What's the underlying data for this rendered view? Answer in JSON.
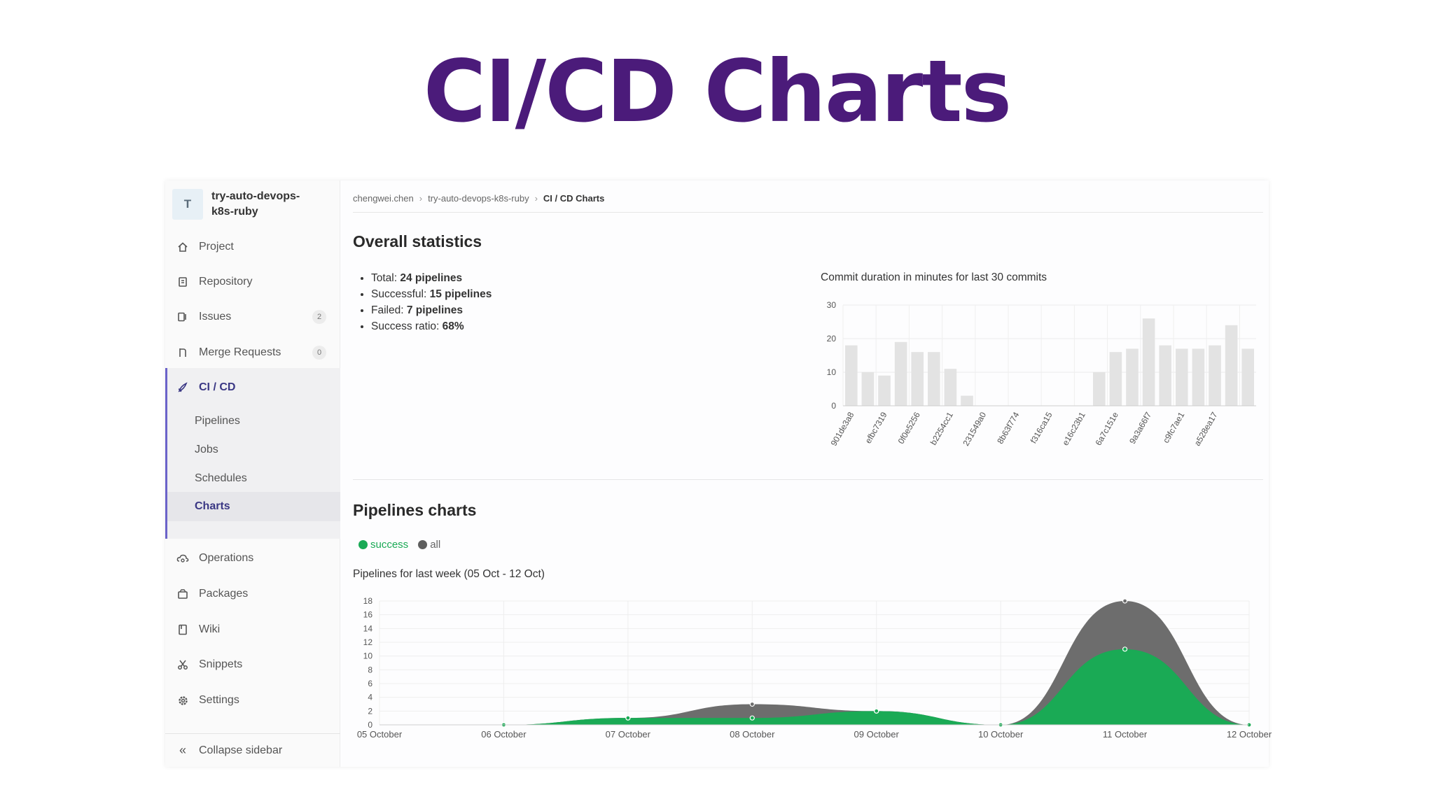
{
  "slide_title": "CI/CD Charts",
  "sidebar": {
    "project_initial": "T",
    "project_name": "try-auto-devops-k8s-ruby",
    "items": [
      {
        "label": "Project",
        "icon": "home-icon"
      },
      {
        "label": "Repository",
        "icon": "book-icon"
      },
      {
        "label": "Issues",
        "icon": "issues-icon",
        "badge": "2"
      },
      {
        "label": "Merge Requests",
        "icon": "merge-request-icon",
        "badge": "0"
      },
      {
        "label": "CI / CD",
        "icon": "rocket-icon"
      },
      {
        "label": "Operations",
        "icon": "cloud-gear-icon"
      },
      {
        "label": "Packages",
        "icon": "package-icon"
      },
      {
        "label": "Wiki",
        "icon": "wiki-icon"
      },
      {
        "label": "Snippets",
        "icon": "scissors-icon"
      },
      {
        "label": "Settings",
        "icon": "gear-icon"
      }
    ],
    "cicd_sub": [
      "Pipelines",
      "Jobs",
      "Schedules",
      "Charts"
    ],
    "collapse_label": "Collapse sidebar"
  },
  "breadcrumb": [
    "chengwei.chen",
    "try-auto-devops-k8s-ruby",
    "CI / CD Charts"
  ],
  "overall": {
    "heading": "Overall statistics",
    "stats": [
      {
        "label": "Total:",
        "value": "24 pipelines"
      },
      {
        "label": "Successful:",
        "value": "15 pipelines"
      },
      {
        "label": "Failed:",
        "value": "7 pipelines"
      },
      {
        "label": "Success ratio:",
        "value": "68%"
      }
    ]
  },
  "pipelines": {
    "heading": "Pipelines charts",
    "legend": [
      {
        "label": "success",
        "color": "#1aaa55"
      },
      {
        "label": "all",
        "color": "#5e5e5e"
      }
    ]
  },
  "chart_data": [
    {
      "type": "bar",
      "title": "Commit duration in minutes for last 30 commits",
      "xlabel": "",
      "ylabel": "",
      "ylim": [
        0,
        30
      ],
      "yticks": [
        0,
        10,
        20,
        30
      ],
      "grid": true,
      "color": "#e3e3e3",
      "tick_labels": [
        "901de3a8",
        "efbc7319",
        "0f0e5256",
        "b2254cc1",
        "231549a0",
        "8b63f774",
        "f316ca15",
        "e16c23b1",
        "6a7c151e",
        "9a3a66f7",
        "c9fc7ae1",
        "a528ea17"
      ],
      "values": [
        18,
        10,
        9,
        19,
        16,
        16,
        11,
        3,
        0,
        0,
        0,
        0,
        0,
        0,
        0,
        10,
        16,
        17,
        26,
        18,
        17,
        17,
        18,
        24,
        17
      ]
    },
    {
      "type": "area",
      "title": "Pipelines for last week (05 Oct - 12 Oct)",
      "xlabel": "",
      "ylabel": "",
      "ylim": [
        0,
        18
      ],
      "yticks": [
        0,
        2,
        4,
        6,
        8,
        10,
        12,
        14,
        16,
        18
      ],
      "grid": true,
      "categories": [
        "05 October",
        "06 October",
        "07 October",
        "08 October",
        "09 October",
        "10 October",
        "11 October",
        "12 October"
      ],
      "series": [
        {
          "name": "all",
          "color": "#6d6d6d",
          "values": [
            0,
            0,
            1,
            3,
            2,
            0,
            18,
            0
          ]
        },
        {
          "name": "success",
          "color": "#1aaa55",
          "values": [
            0,
            0,
            1,
            1,
            2,
            0,
            11,
            0
          ]
        }
      ]
    }
  ]
}
